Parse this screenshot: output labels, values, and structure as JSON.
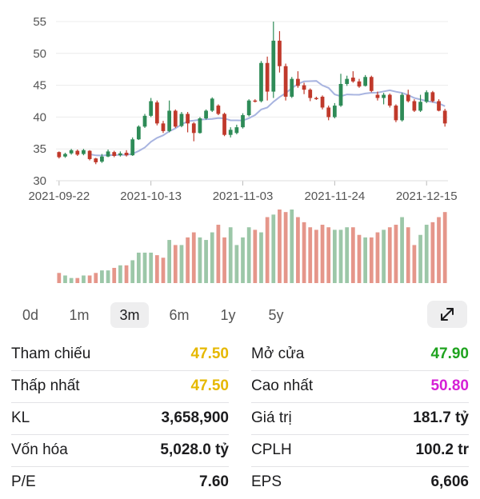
{
  "chart_data": {
    "type": "candlestick",
    "ylim": [
      30,
      55
    ],
    "y_ticks": [
      "55",
      "50",
      "45",
      "40",
      "35",
      "30"
    ],
    "x_tick_labels": [
      "2021-09-22",
      "2021-10-13",
      "2021-11-03",
      "2021-11-24",
      "2021-12-15"
    ],
    "x_tick_index": [
      0,
      15,
      30,
      45,
      60
    ],
    "num_sessions": 64,
    "candles": [
      [
        34.5,
        33.7,
        34.6,
        33.5
      ],
      [
        33.8,
        34.2,
        34.4,
        33.6
      ],
      [
        34.3,
        34.8,
        35.0,
        34.1
      ],
      [
        34.7,
        34.1,
        34.9,
        33.9
      ],
      [
        34.2,
        34.8,
        35.0,
        34.0
      ],
      [
        34.7,
        33.4,
        34.8,
        33.2
      ],
      [
        33.5,
        32.9,
        33.6,
        32.6
      ],
      [
        33.0,
        33.8,
        34.2,
        32.8
      ],
      [
        33.8,
        34.6,
        34.9,
        33.7
      ],
      [
        34.5,
        33.9,
        34.7,
        33.7
      ],
      [
        34.0,
        34.3,
        34.6,
        33.8
      ],
      [
        34.4,
        34.0,
        34.8,
        33.8
      ],
      [
        34.0,
        36.5,
        36.8,
        33.9
      ],
      [
        36.5,
        38.5,
        38.7,
        36.4
      ],
      [
        38.5,
        40.2,
        40.5,
        38.3
      ],
      [
        40.2,
        42.5,
        43.0,
        40.0
      ],
      [
        42.3,
        39.0,
        42.6,
        38.7
      ],
      [
        39.0,
        37.8,
        39.4,
        37.5
      ],
      [
        37.8,
        41.0,
        42.6,
        37.6
      ],
      [
        41.0,
        38.5,
        41.2,
        38.3
      ],
      [
        38.6,
        40.5,
        40.8,
        38.4
      ],
      [
        40.5,
        39.0,
        40.8,
        37.6
      ],
      [
        39.0,
        37.5,
        39.2,
        36.2
      ],
      [
        37.5,
        39.8,
        40.0,
        37.4
      ],
      [
        39.8,
        41.0,
        41.2,
        39.6
      ],
      [
        41.0,
        42.9,
        43.1,
        40.8
      ],
      [
        41.8,
        40.5,
        42.0,
        40.3
      ],
      [
        40.5,
        37.2,
        40.7,
        37.0
      ],
      [
        37.2,
        38.0,
        38.4,
        36.8
      ],
      [
        37.5,
        38.4,
        38.8,
        37.3
      ],
      [
        38.4,
        40.3,
        40.6,
        38.2
      ],
      [
        40.3,
        42.6,
        42.8,
        40.1
      ],
      [
        42.6,
        42.5,
        42.8,
        42.3
      ],
      [
        42.5,
        48.5,
        48.8,
        42.3
      ],
      [
        48.5,
        44.0,
        49.5,
        42.6
      ],
      [
        44.0,
        52.0,
        55.0,
        43.0
      ],
      [
        52.0,
        48.0,
        53.5,
        47.0
      ],
      [
        48.0,
        43.2,
        48.4,
        42.6
      ],
      [
        43.2,
        46.0,
        46.3,
        43.0
      ],
      [
        46.0,
        44.9,
        47.2,
        44.6
      ],
      [
        45.0,
        44.3,
        45.4,
        43.6
      ],
      [
        44.3,
        43.0,
        44.5,
        42.5
      ],
      [
        43.0,
        42.9,
        43.2,
        42.7
      ],
      [
        43.2,
        41.5,
        43.4,
        41.2
      ],
      [
        41.5,
        40.0,
        41.8,
        39.5
      ],
      [
        40.0,
        41.8,
        42.2,
        39.8
      ],
      [
        41.8,
        45.2,
        46.8,
        41.6
      ],
      [
        45.2,
        46.0,
        46.5,
        44.9
      ],
      [
        46.2,
        45.6,
        47.2,
        45.4
      ],
      [
        45.6,
        44.8,
        46.0,
        44.6
      ],
      [
        44.9,
        46.3,
        46.6,
        44.8
      ],
      [
        46.3,
        44.1,
        46.5,
        43.9
      ],
      [
        43.5,
        43.0,
        44.0,
        42.6
      ],
      [
        43.0,
        43.5,
        43.8,
        42.0
      ],
      [
        43.5,
        41.8,
        43.7,
        41.5
      ],
      [
        41.8,
        39.5,
        42.0,
        39.2
      ],
      [
        39.5,
        43.5,
        43.8,
        39.3
      ],
      [
        43.5,
        42.5,
        44.3,
        42.3
      ],
      [
        42.5,
        41.0,
        42.8,
        40.8
      ],
      [
        41.0,
        42.4,
        43.5,
        40.8
      ],
      [
        42.4,
        43.9,
        44.2,
        42.2
      ],
      [
        43.9,
        42.5,
        44.1,
        42.3
      ],
      [
        42.5,
        41.0,
        42.8,
        40.9
      ],
      [
        41.0,
        39.0,
        41.3,
        38.5
      ]
    ],
    "volume": [
      4,
      3,
      2,
      2,
      3,
      3,
      4,
      5,
      5,
      6,
      7,
      7,
      9,
      12,
      12,
      12,
      11,
      10,
      17,
      15,
      15,
      18,
      20,
      18,
      17,
      20,
      23,
      18,
      22,
      15,
      18,
      22,
      21,
      20,
      26,
      27,
      29,
      28,
      29,
      26,
      24,
      22,
      21,
      23,
      22,
      21,
      21,
      22,
      22,
      19,
      18,
      18,
      20,
      21,
      22,
      23,
      26,
      22,
      15,
      19,
      23,
      24,
      26,
      28
    ]
  },
  "range_buttons": [
    "0d",
    "1m",
    "3m",
    "6m",
    "1y",
    "5y"
  ],
  "active_range": "3m",
  "colors": {
    "up": "#2e8b57",
    "down": "#c0392b",
    "ma_line": "#a8b4e0",
    "volume_up": "#9cc7a8",
    "volume_down": "#e5968a",
    "ref_yellow": "#e6b800",
    "open_green": "#1fa31f",
    "high_magenta": "#d61fd6"
  },
  "stats": [
    {
      "left_label": "Tham chiếu",
      "left_value": "47.50",
      "right_label": "Mở cửa",
      "right_value": "47.90"
    },
    {
      "left_label": "Thấp nhất",
      "left_value": "47.50",
      "right_label": "Cao nhất",
      "right_value": "50.80"
    },
    {
      "left_label": "KL",
      "left_value": "3,658,900",
      "right_label": "Giá trị",
      "right_value": "181.7 tỷ"
    },
    {
      "left_label": "Vốn hóa",
      "left_value": "5,028.0 tỷ",
      "right_label": "CPLH",
      "right_value": "100.2 tr"
    },
    {
      "left_label": "P/E",
      "left_value": "7.60",
      "right_label": "EPS",
      "right_value": "6,606"
    }
  ]
}
